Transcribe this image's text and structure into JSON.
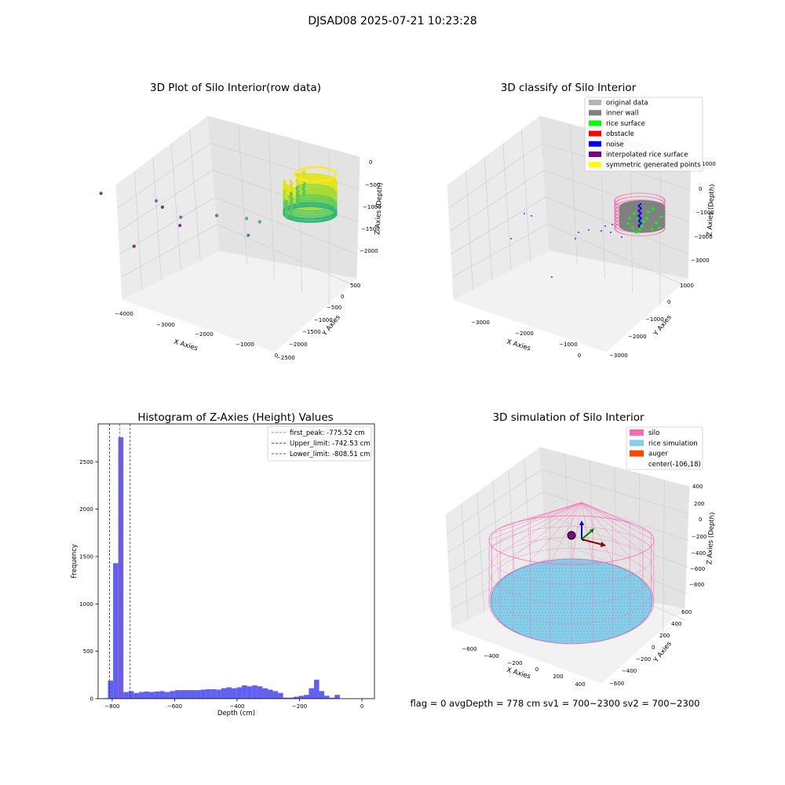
{
  "figure": {
    "suptitle": "DJSAD08 2025-07-21 10:23:28",
    "status_line": "flag = 0     avgDepth = 778 cm  sv1 = 700~2300  sv2 = 700~2300"
  },
  "colors": {
    "histogram_bar": "#5050f0",
    "first_peak_line": "#ff3333",
    "limit_line": "#1f1fcc",
    "pane_left": "#ebebeb",
    "pane_right": "#e3e3e3",
    "pane_floor": "#f2f2f2",
    "grid": "#cfcfcf"
  },
  "chart_data": [
    {
      "id": "raw",
      "type": "scatter",
      "title": "3D Plot of Silo Interior(row data)",
      "xlabel": "X Axies",
      "ylabel": "Y Axies",
      "zlabel": "Z Axies (Depth)",
      "x_ticks": [
        "−4000",
        "−3000",
        "−2000",
        "−1000",
        "0"
      ],
      "y_ticks": [
        "500",
        "0",
        "−500",
        "−1000",
        "−1500",
        "−2000",
        "−2500"
      ],
      "z_ticks": [
        "0",
        "−500",
        "−1000",
        "−1500",
        "−2000"
      ],
      "colormap": "viridis",
      "points": [
        {
          "x": -4050,
          "y": -1250,
          "z": -1800
        },
        {
          "x": -3200,
          "y": -950,
          "z": -1650
        },
        {
          "x": -3050,
          "y": -1000,
          "z": -1700
        },
        {
          "x": -2550,
          "y": -1250,
          "z": -1780
        },
        {
          "x": -2600,
          "y": -1150,
          "z": -1650
        },
        {
          "x": -1950,
          "y": -1100,
          "z": -1300
        },
        {
          "x": -1450,
          "y": -1000,
          "z": -1150
        },
        {
          "x": -1200,
          "y": -1000,
          "z": -1100
        },
        {
          "x": -1350,
          "y": -1100,
          "z": -1450
        },
        {
          "x": -2750,
          "y": -2250,
          "z": -2000
        }
      ],
      "cluster": {
        "center_x": -600,
        "center_y": -250,
        "radius": 650,
        "z_top": -350,
        "z_bottom": -1350
      }
    },
    {
      "id": "classify",
      "type": "scatter",
      "title": "3D classify of Silo Interior",
      "xlabel": "X Axies",
      "ylabel": "Y Axies",
      "zlabel": "Z Axies (Depth)",
      "x_ticks": [
        "−3000",
        "−2000",
        "−1000",
        "0"
      ],
      "y_ticks": [
        "1000",
        "0",
        "−1000",
        "−2000",
        "−3000"
      ],
      "z_ticks": [
        "1000",
        "0",
        "−1000",
        "−2000",
        "−3000"
      ],
      "legend": [
        {
          "label": "original data",
          "color": "#b4b4b4"
        },
        {
          "label": "inner wall",
          "color": "#808080"
        },
        {
          "label": "rice surface",
          "color": "#00ff00"
        },
        {
          "label": "obstacle",
          "color": "#ff0000"
        },
        {
          "label": "noise",
          "color": "#0000ff"
        },
        {
          "label": "interpolated rice surface",
          "color": "#800080"
        },
        {
          "label": "symmetric generated points",
          "color": "#ffff00"
        }
      ]
    },
    {
      "id": "hist",
      "type": "bar",
      "title": "Histogram of Z-Axies (Height) Values",
      "xlabel": "Depth (cm)",
      "ylabel": "Frequency",
      "xlim": [
        -845,
        40
      ],
      "ylim": [
        0,
        2900
      ],
      "x_ticks": [
        {
          "v": -800,
          "t": "−800"
        },
        {
          "v": -600,
          "t": "−600"
        },
        {
          "v": -400,
          "t": "−400"
        },
        {
          "v": -200,
          "t": "−200"
        },
        {
          "v": 0,
          "t": "0"
        }
      ],
      "y_ticks": [
        {
          "v": 0,
          "t": "0"
        },
        {
          "v": 500,
          "t": "500"
        },
        {
          "v": 1000,
          "t": "1000"
        },
        {
          "v": 1500,
          "t": "1500"
        },
        {
          "v": 2000,
          "t": "2000"
        },
        {
          "v": 2500,
          "t": "2500"
        }
      ],
      "bin_start": -830,
      "bin_width": 16.5,
      "values": [
        5,
        190,
        1430,
        2760,
        70,
        80,
        60,
        70,
        75,
        70,
        75,
        80,
        70,
        80,
        90,
        90,
        90,
        90,
        90,
        95,
        100,
        100,
        95,
        110,
        120,
        110,
        120,
        140,
        130,
        140,
        130,
        110,
        95,
        80,
        60,
        10,
        10,
        20,
        30,
        40,
        110,
        200,
        80,
        30,
        10,
        40
      ],
      "vlines": [
        {
          "label": "first_peak: -775.52 cm",
          "x": -775.52,
          "color": "#ff3333"
        },
        {
          "label": "Upper_limit: -742.53 cm",
          "x": -742.53,
          "color": "#1f1fcc"
        },
        {
          "label": "Lower_limit: -808.51 cm",
          "x": -808.51,
          "color": "#1f1fcc"
        }
      ]
    },
    {
      "id": "sim",
      "type": "scatter",
      "title": "3D simulation of Silo Interior",
      "xlabel": "X Axies",
      "ylabel": "Y Axies",
      "zlabel": "Z Axies (Depth)",
      "x_ticks": [
        "−600",
        "−400",
        "−200",
        "0",
        "200",
        "400"
      ],
      "y_ticks": [
        "600",
        "400",
        "200",
        "0",
        "−200",
        "−400",
        "−600"
      ],
      "z_ticks": [
        "400",
        "200",
        "0",
        "−200",
        "−400",
        "−600",
        "−800"
      ],
      "legend": [
        {
          "label": "silo",
          "color": "#ff69b4",
          "kind": "patch"
        },
        {
          "label": "rice simulation",
          "color": "#87ceeb",
          "kind": "patch"
        },
        {
          "label": "auger",
          "color": "#ff4500",
          "kind": "patch"
        },
        {
          "label": "center(-106,18)",
          "color": "none",
          "kind": "none"
        }
      ]
    }
  ]
}
